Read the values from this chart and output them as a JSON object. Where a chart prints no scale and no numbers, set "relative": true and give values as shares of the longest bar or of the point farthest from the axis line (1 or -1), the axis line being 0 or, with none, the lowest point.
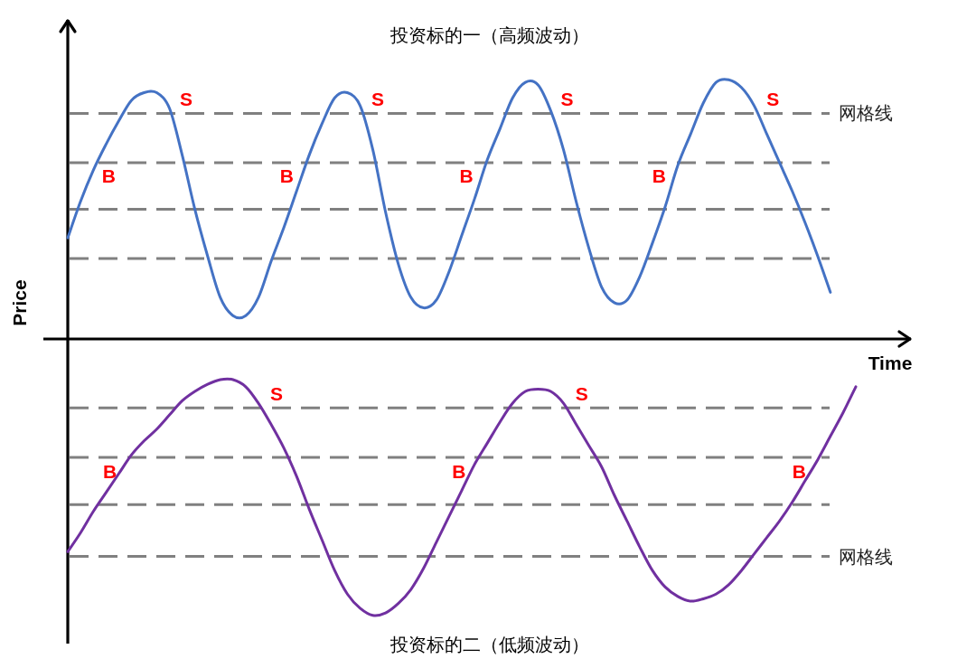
{
  "chart_data": [
    {
      "type": "line",
      "title": "投资标的一（高频波动）",
      "xlabel": "Time",
      "ylabel": "Price",
      "relative": true,
      "categories": [
        null,
        null,
        null,
        null,
        null,
        null,
        null,
        null,
        null,
        null,
        null,
        null,
        null,
        null,
        null,
        null,
        null,
        null,
        null,
        null,
        null,
        null,
        null,
        null,
        null,
        null,
        null,
        null,
        null,
        null,
        null,
        null,
        null,
        null,
        null,
        null,
        null,
        null,
        null,
        null,
        null,
        null,
        null,
        null,
        null,
        null,
        null,
        null,
        null,
        null,
        null,
        null,
        null,
        null,
        null,
        null,
        null,
        null,
        null,
        null,
        null
      ],
      "series": [
        {
          "color": "#4472c4",
          "values": [
            0.39,
            0.53,
            0.65,
            0.75,
            0.84,
            0.92,
            0.95,
            0.95,
            0.89,
            0.71,
            0.5,
            0.32,
            0.16,
            0.09,
            0.09,
            0.16,
            0.3,
            0.43,
            0.57,
            0.71,
            0.83,
            0.93,
            0.95,
            0.9,
            0.73,
            0.49,
            0.29,
            0.16,
            0.12,
            0.15,
            0.26,
            0.4,
            0.54,
            0.69,
            0.81,
            0.93,
            0.99,
            0.98,
            0.88,
            0.73,
            0.53,
            0.35,
            0.2,
            0.14,
            0.15,
            0.24,
            0.37,
            0.51,
            0.67,
            0.79,
            0.91,
            0.99,
            1.0,
            0.97,
            0.9,
            0.79,
            0.68,
            0.57,
            0.45,
            0.32,
            0.18
          ]
        }
      ],
      "ref_lines": [
        {
          "axis": "y",
          "value": 0.87,
          "label": "网格线",
          "color": "#808080",
          "line_style": "dashed"
        },
        {
          "axis": "y",
          "value": 0.68,
          "color": "#808080",
          "line_style": "dashed"
        },
        {
          "axis": "y",
          "value": 0.5,
          "color": "#808080",
          "line_style": "dashed"
        },
        {
          "axis": "y",
          "value": 0.31,
          "color": "#808080",
          "line_style": "dashed"
        }
      ],
      "annotations": [
        {
          "text": "B",
          "y": 0.68
        },
        {
          "text": "S",
          "y": 0.87
        },
        {
          "text": "B",
          "y": 0.68
        },
        {
          "text": "S",
          "y": 0.87
        },
        {
          "text": "B",
          "y": 0.68
        },
        {
          "text": "S",
          "y": 0.87
        },
        {
          "text": "B",
          "y": 0.68
        },
        {
          "text": "S",
          "y": 0.87
        }
      ]
    },
    {
      "type": "line",
      "title": "投资标的二（低频波动）",
      "relative": true,
      "categories": [
        null,
        null,
        null,
        null,
        null,
        null,
        null,
        null,
        null,
        null,
        null,
        null,
        null,
        null,
        null,
        null,
        null,
        null,
        null,
        null,
        null,
        null,
        null,
        null,
        null,
        null,
        null,
        null,
        null,
        null,
        null,
        null,
        null,
        null,
        null,
        null,
        null,
        null,
        null,
        null,
        null,
        null,
        null,
        null,
        null,
        null,
        null,
        null,
        null,
        null,
        null,
        null,
        null,
        null,
        null,
        null,
        null,
        null,
        null,
        null,
        null,
        null,
        null
      ],
      "series": [
        {
          "color": "#7030a0",
          "values": [
            0.27,
            0.35,
            0.44,
            0.52,
            0.6,
            0.68,
            0.74,
            0.79,
            0.85,
            0.91,
            0.95,
            0.98,
            1.0,
            1.0,
            0.97,
            0.9,
            0.81,
            0.71,
            0.59,
            0.45,
            0.32,
            0.19,
            0.09,
            0.03,
            0,
            0.01,
            0.05,
            0.11,
            0.2,
            0.31,
            0.42,
            0.53,
            0.64,
            0.73,
            0.82,
            0.9,
            0.95,
            0.96,
            0.95,
            0.9,
            0.81,
            0.72,
            0.63,
            0.51,
            0.4,
            0.29,
            0.19,
            0.12,
            0.08,
            0.06,
            0.07,
            0.09,
            0.13,
            0.19,
            0.26,
            0.33,
            0.4,
            0.48,
            0.57,
            0.66,
            0.76,
            0.86,
            0.97
          ]
        }
      ],
      "ref_lines": [
        {
          "axis": "y",
          "value": 0.88,
          "color": "#808080",
          "line_style": "dashed"
        },
        {
          "axis": "y",
          "value": 0.67,
          "color": "#808080",
          "line_style": "dashed"
        },
        {
          "axis": "y",
          "value": 0.47,
          "color": "#808080",
          "line_style": "dashed"
        },
        {
          "axis": "y",
          "value": 0.25,
          "label": "网格线",
          "color": "#808080",
          "line_style": "dashed"
        }
      ],
      "annotations": [
        {
          "text": "B",
          "y": 0.67
        },
        {
          "text": "S",
          "y": 0.88
        },
        {
          "text": "B",
          "y": 0.67
        },
        {
          "text": "S",
          "y": 0.88
        },
        {
          "text": "B",
          "y": 0.67
        }
      ]
    }
  ]
}
